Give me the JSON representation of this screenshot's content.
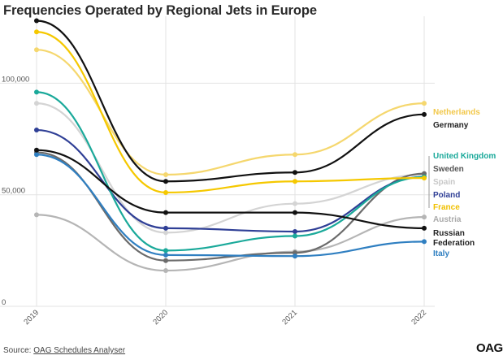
{
  "chart_data": {
    "type": "line",
    "title": "Frequencies Operated by Regional Jets in Europe",
    "xlabel": "",
    "ylabel": "",
    "x": [
      "2019",
      "2020",
      "2021",
      "2022"
    ],
    "ylim": [
      0,
      130000
    ],
    "yticks": [
      0,
      50000,
      100000
    ],
    "ytick_labels": [
      "0",
      "50,000",
      "100,000"
    ],
    "grid": true,
    "legend": "right-end labels",
    "series": [
      {
        "name": "Netherlands",
        "color": "#f5d76e",
        "values": [
          115000,
          59000,
          68000,
          91000
        ],
        "labelColor": "#f2c84b"
      },
      {
        "name": "Germany",
        "color": "#111111",
        "values": [
          128000,
          56000,
          60000,
          86000
        ],
        "labelColor": "#222222"
      },
      {
        "name": "United Kingdom",
        "color": "#1aa99a",
        "values": [
          96000,
          25000,
          31500,
          58000
        ],
        "labelColor": "#1aa99a"
      },
      {
        "name": "Sweden",
        "color": "#6b6b6b",
        "values": [
          69000,
          20500,
          24000,
          59500
        ],
        "labelColor": "#555555"
      },
      {
        "name": "Spain",
        "color": "#d4d4d4",
        "values": [
          91000,
          33000,
          46000,
          59000
        ],
        "labelColor": "#c8c8c8"
      },
      {
        "name": "Poland",
        "color": "#2f3f96",
        "values": [
          79000,
          35000,
          33500,
          58000
        ],
        "labelColor": "#2f3f96"
      },
      {
        "name": "France",
        "color": "#f5c800",
        "values": [
          123000,
          51000,
          56000,
          57500
        ],
        "labelColor": "#f0c000"
      },
      {
        "name": "Austria",
        "color": "#b5b5b5",
        "values": [
          41000,
          16000,
          24500,
          40000
        ],
        "labelColor": "#aaaaaa"
      },
      {
        "name": "Russian Federation",
        "color": "#111111",
        "values": [
          70000,
          42000,
          42000,
          35000
        ],
        "labelColor": "#222222"
      },
      {
        "name": "Italy",
        "color": "#2f7fc1",
        "values": [
          68000,
          23000,
          22500,
          29000
        ],
        "labelColor": "#2f7fc1"
      }
    ]
  },
  "footer": {
    "source_prefix": "Source: ",
    "source_link": "OAG Schedules Analyser",
    "logo": "OAG"
  }
}
